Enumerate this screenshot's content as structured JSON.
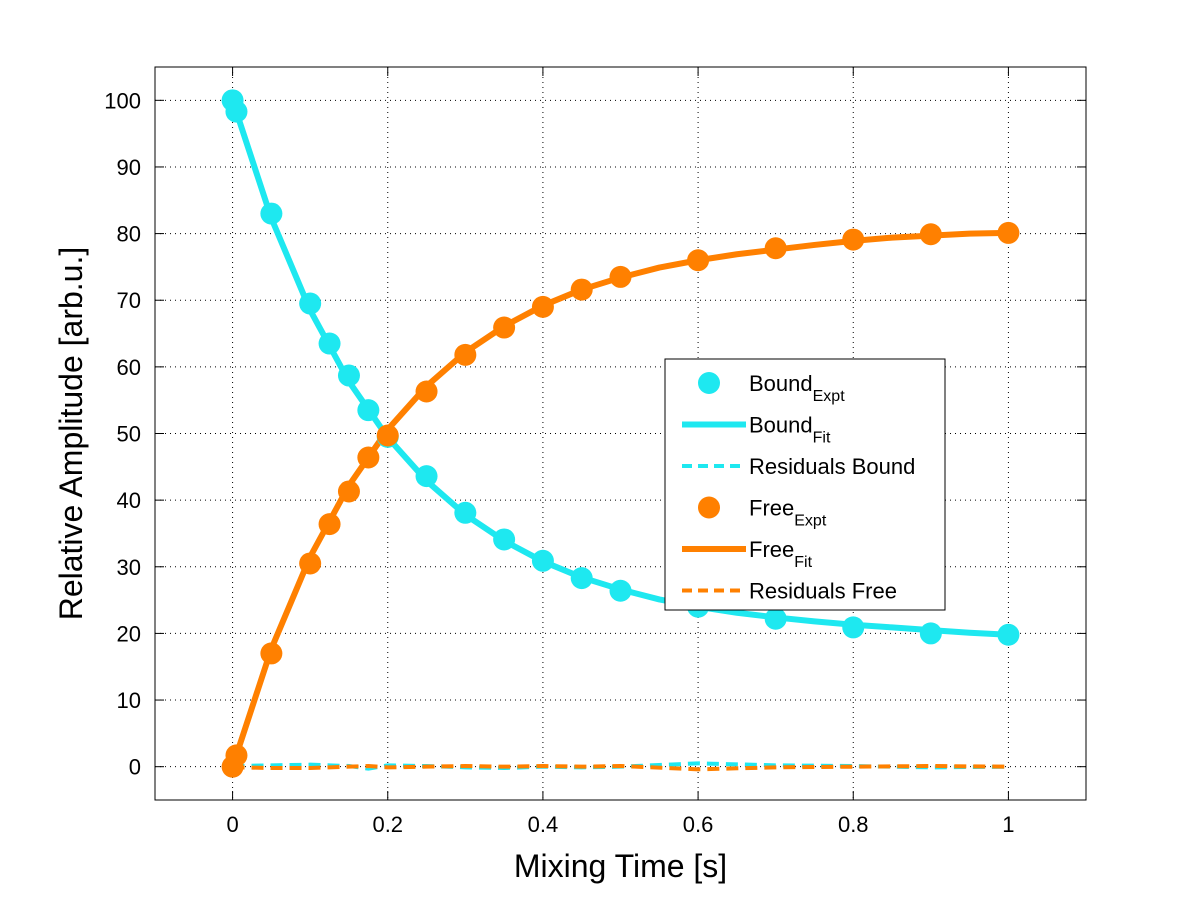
{
  "chart_data": {
    "type": "line",
    "title": "",
    "xlabel": "Mixing Time [s]",
    "ylabel": "Relative Amplitude [arb.u.]",
    "xlim": [
      -0.1,
      1.1
    ],
    "ylim": [
      -5,
      105
    ],
    "xticks": [
      0,
      0.2,
      0.4,
      0.6,
      0.8,
      1
    ],
    "xtick_labels": [
      "0",
      "0.2",
      "0.4",
      "0.6",
      "0.8",
      "1"
    ],
    "yticks": [
      0,
      10,
      20,
      30,
      40,
      50,
      60,
      70,
      80,
      90,
      100
    ],
    "ytick_labels": [
      "0",
      "10",
      "20",
      "30",
      "40",
      "50",
      "60",
      "70",
      "80",
      "90",
      "100"
    ],
    "grid": true,
    "legend_position": "center-right",
    "colors": {
      "bound": "#1ee8f0",
      "free": "#ff8000"
    },
    "x_expt": [
      0,
      0.005,
      0.05,
      0.1,
      0.125,
      0.15,
      0.175,
      0.2,
      0.25,
      0.3,
      0.35,
      0.4,
      0.45,
      0.5,
      0.6,
      0.7,
      0.8,
      0.9,
      1.0
    ],
    "x_fit": [
      0,
      0.05,
      0.1,
      0.15,
      0.2,
      0.25,
      0.3,
      0.35,
      0.4,
      0.45,
      0.5,
      0.55,
      0.6,
      0.65,
      0.7,
      0.75,
      0.8,
      0.85,
      0.9,
      0.95,
      1.0
    ],
    "series": [
      {
        "name": "Bound",
        "sub": "Expt",
        "style": "marker",
        "color": "#1ee8f0",
        "values": [
          100,
          98.3,
          83,
          69.5,
          63.5,
          58.7,
          53.5,
          49.5,
          43.6,
          38.1,
          34.1,
          30.9,
          28.3,
          26.4,
          24,
          22.2,
          20.9,
          20,
          19.8
        ]
      },
      {
        "name": "Bound",
        "sub": "Fit",
        "style": "solid",
        "color": "#1ee8f0",
        "values": [
          100,
          82.3,
          68.5,
          57.8,
          49.4,
          42.9,
          37.8,
          33.9,
          30.8,
          28.4,
          26.6,
          25.1,
          24.0,
          23.1,
          22.4,
          21.8,
          21.3,
          20.9,
          20.5,
          20.1,
          19.8
        ]
      },
      {
        "name": "Residuals Bound",
        "sub": "",
        "style": "dashed",
        "color": "#1ee8f0",
        "values": [
          0,
          0.1,
          0.2,
          0.3,
          0.2,
          0.1,
          -0.3,
          0.2,
          0.1,
          -0.1,
          -0.2,
          0,
          -0.1,
          0,
          0.5,
          0.2,
          0.1,
          -0.1,
          0
        ]
      },
      {
        "name": "Free",
        "sub": "Expt",
        "style": "marker",
        "color": "#ff8000",
        "values": [
          0,
          1.7,
          17,
          30.5,
          36.4,
          41.3,
          46.4,
          49.7,
          56.3,
          61.8,
          65.9,
          69,
          71.6,
          73.5,
          76,
          77.8,
          79.1,
          79.9,
          80.1
        ]
      },
      {
        "name": "Free",
        "sub": "Fit",
        "style": "solid",
        "color": "#ff8000",
        "values": [
          0,
          17.7,
          31.5,
          42.2,
          50.6,
          57.1,
          62.2,
          66.1,
          69.2,
          71.6,
          73.4,
          74.9,
          76.0,
          76.9,
          77.6,
          78.3,
          78.9,
          79.4,
          79.7,
          80.0,
          80.1
        ]
      },
      {
        "name": "Residuals Free",
        "sub": "",
        "style": "dashed",
        "color": "#ff8000",
        "values": [
          0,
          -0.1,
          -0.2,
          -0.2,
          -0.1,
          0,
          0.1,
          -0.1,
          0,
          0.1,
          0,
          0.1,
          0,
          0.1,
          -0.4,
          -0.1,
          0,
          0.1,
          0
        ]
      }
    ]
  }
}
